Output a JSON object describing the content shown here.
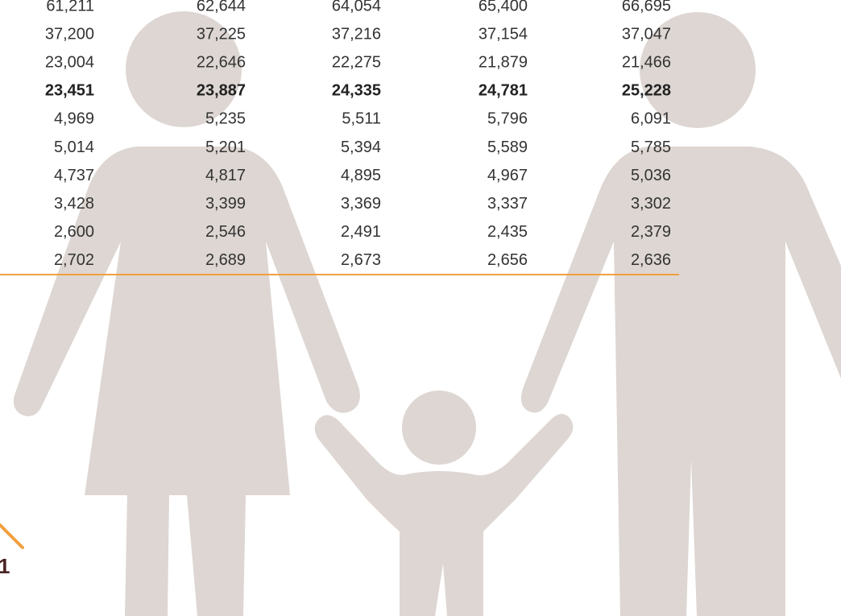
{
  "table": {
    "rows": [
      [
        "61,211",
        "62,644",
        "64,054",
        "65,400",
        "66,695"
      ],
      [
        "37,200",
        "37,225",
        "37,216",
        "37,154",
        "37,047"
      ],
      [
        "23,004",
        "22,646",
        "22,275",
        "21,879",
        "21,466"
      ],
      [
        "23,451",
        "23,887",
        "24,335",
        "24,781",
        "25,228"
      ],
      [
        "4,969",
        "5,235",
        "5,511",
        "5,796",
        "6,091"
      ],
      [
        "5,014",
        "5,201",
        "5,394",
        "5,589",
        "5,785"
      ],
      [
        "4,737",
        "4,817",
        "4,895",
        "4,967",
        "5,036"
      ],
      [
        "3,428",
        "3,399",
        "3,369",
        "3,337",
        "3,302"
      ],
      [
        "2,600",
        "2,546",
        "2,491",
        "2,435",
        "2,379"
      ],
      [
        "2,702",
        "2,689",
        "2,673",
        "2,656",
        "2,636"
      ]
    ],
    "bold_rows": [
      3
    ]
  },
  "footer": {
    "page_number": "1"
  }
}
